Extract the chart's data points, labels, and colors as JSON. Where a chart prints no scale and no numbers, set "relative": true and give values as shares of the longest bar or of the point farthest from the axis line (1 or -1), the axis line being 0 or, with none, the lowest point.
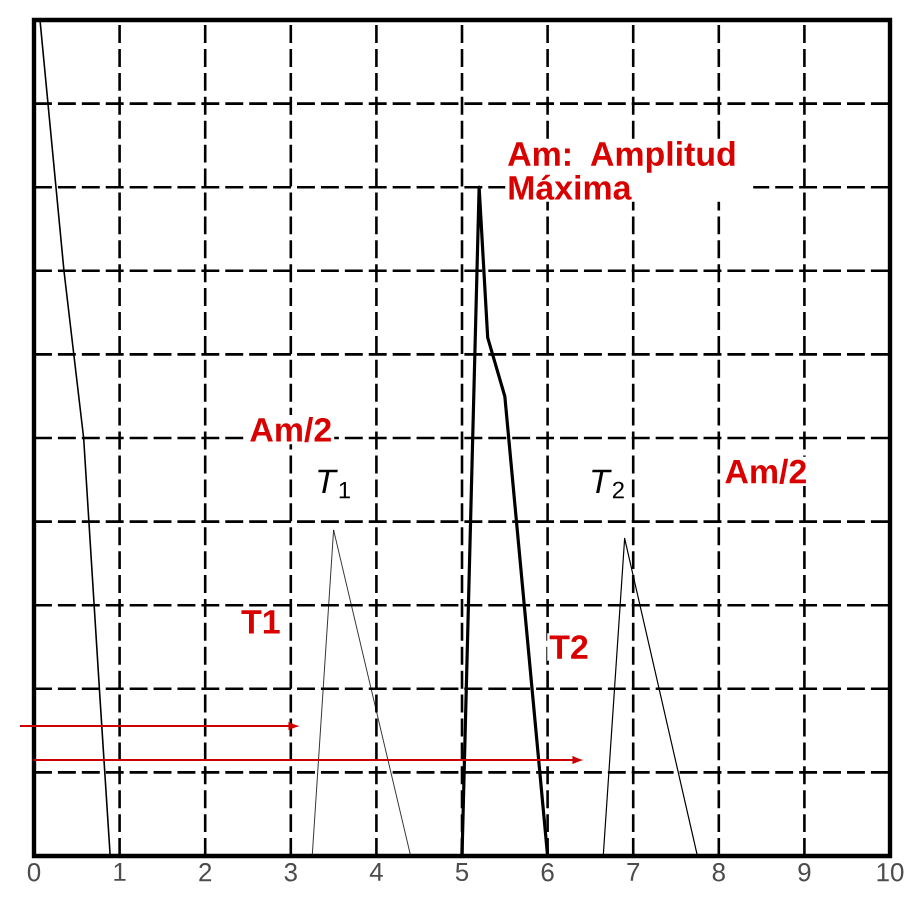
{
  "chart_data": {
    "type": "line",
    "relative": true,
    "series": [
      {
        "color": "#000000",
        "x": [
          0.07,
          0.35,
          0.58,
          0.77,
          0.89
        ],
        "values": [
          1.0,
          0.7,
          0.5,
          0.19,
          0.0
        ]
      },
      {
        "color": "#000000",
        "x": [
          3.25,
          3.5,
          4.4
        ],
        "values": [
          0.0,
          0.39,
          0.0
        ]
      },
      {
        "color": "#000000",
        "x": [
          5.0,
          5.2,
          5.3,
          5.5,
          6.0
        ],
        "values": [
          0.0,
          0.8,
          0.62,
          0.55,
          0.0
        ]
      },
      {
        "color": "#000000",
        "x": [
          6.65,
          6.9,
          7.75
        ],
        "values": [
          0.0,
          0.38,
          0.0
        ]
      }
    ],
    "xlim": [
      0,
      10
    ],
    "xticks": [
      0,
      1,
      2,
      3,
      4,
      5,
      6,
      7,
      8,
      9,
      10
    ],
    "grid": true,
    "tick_labels": "x",
    "marker": "none",
    "line_style": "solid",
    "annotations": [
      "**Am: Amplitud Máxima**",
      "**Am/2**",
      "*T*$_{1}$",
      "**T1**",
      "**Am/2**",
      "*T*$_{2}$",
      "**T2**"
    ]
  }
}
